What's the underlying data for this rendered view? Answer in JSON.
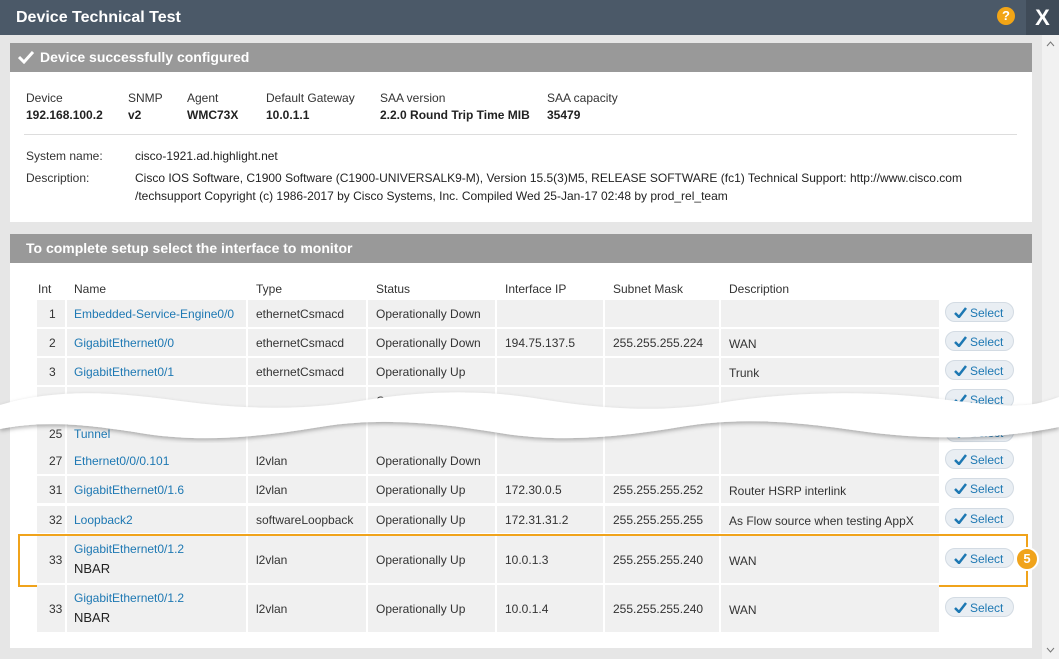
{
  "header": {
    "title": "Device Technical Test",
    "help": "?",
    "close": "X"
  },
  "status_banner": "Device successfully configured",
  "device_info": [
    {
      "label": "Device",
      "value": "192.168.100.2"
    },
    {
      "label": "SNMP",
      "value": "v2"
    },
    {
      "label": "Agent",
      "value": "WMC73X"
    },
    {
      "label": "Default Gateway",
      "value": "10.0.1.1"
    },
    {
      "label": "SAA version",
      "value": "2.2.0 Round Trip Time MIB"
    },
    {
      "label": "SAA capacity",
      "value": "35479"
    }
  ],
  "system": {
    "name_label": "System name:",
    "name": "cisco-1921.ad.highlight.net",
    "description_label": "Description:",
    "description": [
      "Cisco IOS Software, C1900 Software (C1900-UNIVERSALK9-M), Version 15.5(3)M5, RELEASE SOFTWARE (fc1) Technical Support: http://www.cisco.com",
      "/techsupport Copyright (c) 1986-2017 by Cisco Systems, Inc. Compiled Wed 25-Jan-17 02:48 by prod_rel_team"
    ]
  },
  "interface_banner": "To complete setup select the interface to monitor",
  "table": {
    "columns": [
      "Int",
      "Name",
      "Type",
      "Status",
      "Interface IP",
      "Subnet Mask",
      "Description"
    ],
    "select_label": "Select",
    "callout": "5",
    "rows": [
      {
        "int": "1",
        "name": "Embedded-Service-Engine0/0",
        "type": "ethernetCsmacd",
        "status": "Operationally Down",
        "ip": "",
        "mask": "",
        "description": ""
      },
      {
        "int": "2",
        "name": "GigabitEthernet0/0",
        "type": "ethernetCsmacd",
        "status": "Operationally Down",
        "ip": "194.75.137.5",
        "mask": "255.255.255.224",
        "description": "WAN"
      },
      {
        "int": "3",
        "name": "GigabitEthernet0/1",
        "type": "ethernetCsmacd",
        "status": "Operationally Up",
        "ip": "",
        "mask": "",
        "description": "Trunk"
      },
      {
        "int": "",
        "name": "",
        "type": "",
        "status": "Operationally Up",
        "ip": "",
        "mask": "",
        "description": ""
      },
      {
        "int": "25",
        "name": "Tunnel",
        "type": "",
        "status": "",
        "ip": "",
        "mask": "",
        "description": ""
      },
      {
        "int": "27",
        "name": "Ethernet0/0/0.101",
        "type": "l2vlan",
        "status": "Operationally Down",
        "ip": "",
        "mask": "",
        "description": ""
      },
      {
        "int": "31",
        "name": "GigabitEthernet0/1.6",
        "type": "l2vlan",
        "status": "Operationally Up",
        "ip": "172.30.0.5",
        "mask": "255.255.255.252",
        "description": "Router HSRP interlink"
      },
      {
        "int": "32",
        "name": "Loopback2",
        "type": "softwareLoopback",
        "status": "Operationally Up",
        "ip": "172.31.31.2",
        "mask": "255.255.255.255",
        "description": "As Flow source when testing AppX"
      },
      {
        "int": "33",
        "name": "GigabitEthernet0/1.2",
        "subname": "NBAR",
        "type": "l2vlan",
        "status": "Operationally Up",
        "ip": "10.0.1.3",
        "mask": "255.255.255.240",
        "description": "WAN",
        "highlighted": true
      },
      {
        "int": "33",
        "name": "GigabitEthernet0/1.2",
        "subname": "NBAR",
        "type": "l2vlan",
        "status": "Operationally Up",
        "ip": "10.0.1.4",
        "mask": "255.255.255.240",
        "description": "WAN"
      }
    ]
  }
}
